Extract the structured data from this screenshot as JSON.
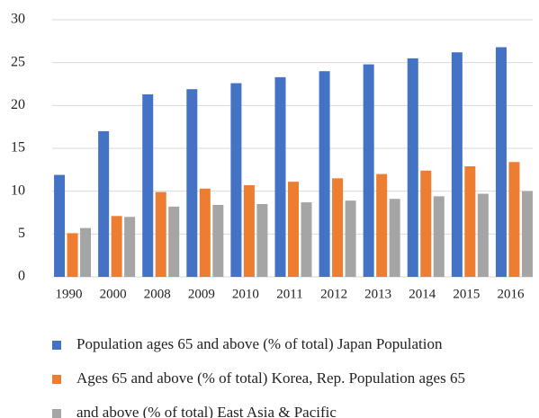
{
  "chart_data": {
    "type": "bar",
    "categories": [
      "1990",
      "2000",
      "2008",
      "2009",
      "2010",
      "2011",
      "2012",
      "2013",
      "2014",
      "2015",
      "2016"
    ],
    "series": [
      {
        "name": "Population ages 65 and above (% of total) Japan Population",
        "color": "#4472c4",
        "values": [
          11.9,
          17.0,
          21.3,
          21.9,
          22.6,
          23.3,
          24.0,
          24.8,
          25.5,
          26.2,
          26.8
        ]
      },
      {
        "name": "Ages 65 and above (% of total) Korea, Rep. Population ages 65",
        "color": "#ed7d31",
        "values": [
          5.1,
          7.1,
          9.9,
          10.3,
          10.7,
          11.1,
          11.5,
          12.0,
          12.4,
          12.9,
          13.4
        ]
      },
      {
        "name": "and above (% of total) East Asia & Pacific",
        "color": "#a5a5a5",
        "values": [
          5.7,
          7.0,
          8.2,
          8.4,
          8.5,
          8.7,
          8.9,
          9.1,
          9.4,
          9.7,
          10.0
        ]
      }
    ],
    "ylim": [
      0,
      30
    ],
    "yticks": [
      0,
      5,
      10,
      15,
      20,
      25,
      30
    ],
    "grid": true,
    "legend": "bottom"
  }
}
